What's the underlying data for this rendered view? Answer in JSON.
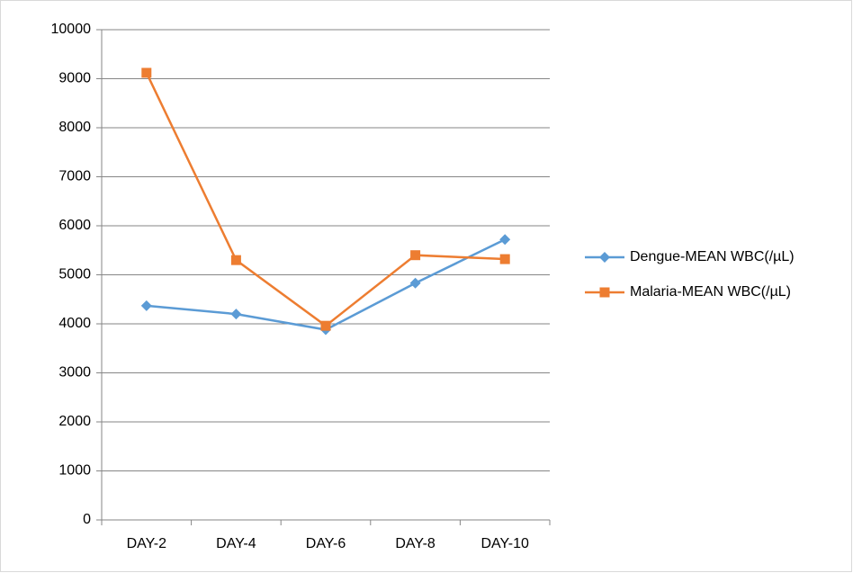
{
  "chart_data": {
    "type": "line",
    "categories": [
      "DAY-2",
      "DAY-4",
      "DAY-6",
      "DAY-8",
      "DAY-10"
    ],
    "series": [
      {
        "name": "Dengue-MEAN WBC(/µL)",
        "color": "#5b9bd5",
        "marker": "diamond",
        "values": [
          4370,
          4200,
          3880,
          4830,
          5720
        ]
      },
      {
        "name": "Malaria-MEAN WBC(/µL)",
        "color": "#ed7d31",
        "marker": "square",
        "values": [
          9120,
          5300,
          3960,
          5400,
          5320
        ]
      }
    ],
    "ylim": [
      0,
      10000
    ],
    "yticks": [
      0,
      1000,
      2000,
      3000,
      4000,
      5000,
      6000,
      7000,
      8000,
      9000,
      10000
    ],
    "grid": true,
    "legend": "right"
  }
}
